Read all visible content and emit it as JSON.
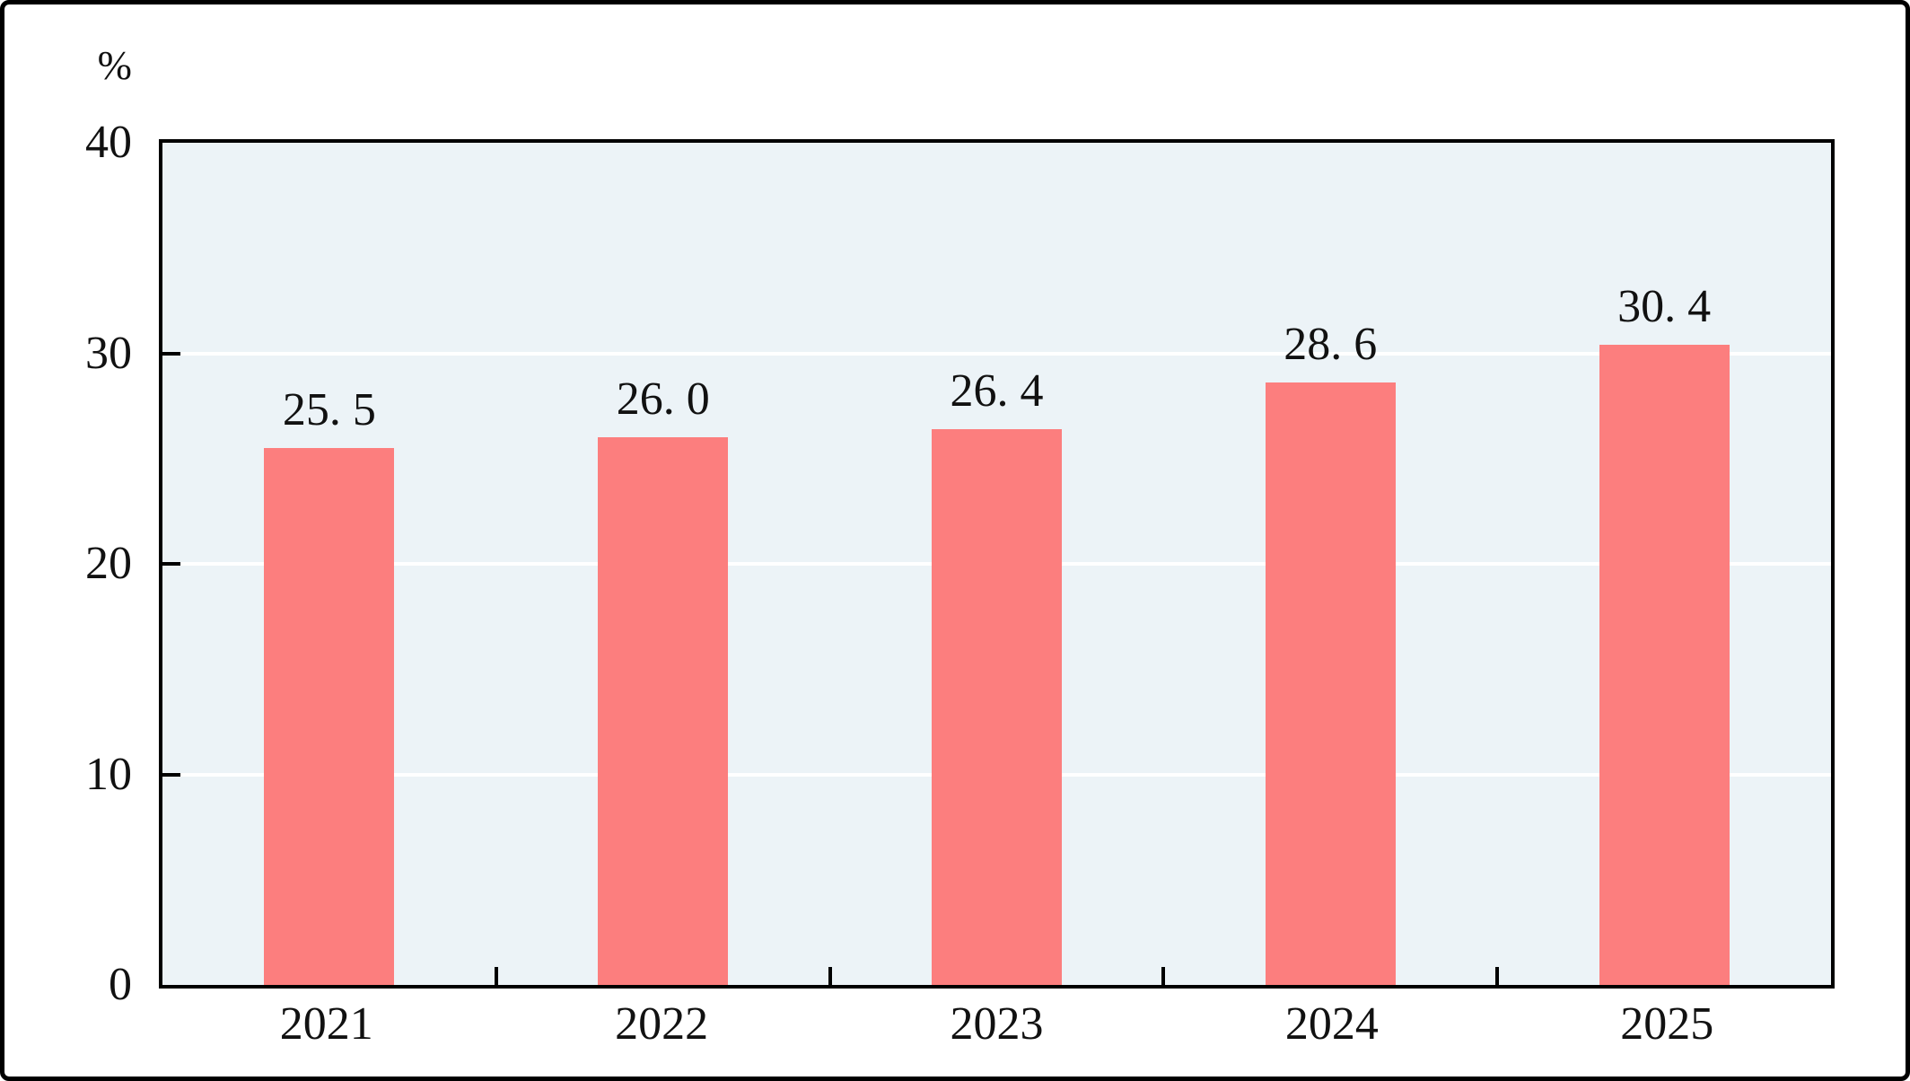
{
  "chart_data": {
    "type": "bar",
    "title": "",
    "unit_label": "%",
    "categories": [
      "2021",
      "2022",
      "2023",
      "2024",
      "2025"
    ],
    "values": [
      25.5,
      26.0,
      26.4,
      28.6,
      30.4
    ],
    "data_labels": [
      "25. 5",
      "26. 0",
      "26. 4",
      "28. 6",
      "30. 4"
    ],
    "y_ticks": [
      0,
      10,
      20,
      30,
      40
    ],
    "ylim": [
      0,
      40
    ],
    "xlabel": "",
    "ylabel": "%",
    "grid": "horizontal",
    "legend": "none",
    "colors": {
      "bar_fill": "#FC7E7E",
      "plot_background": "#ECF3F7",
      "gridline": "#FFFFFF",
      "axis_line": "#000000",
      "text": "#111111",
      "page_background": "#FFFFFF",
      "outer_frame": "#000000"
    }
  }
}
